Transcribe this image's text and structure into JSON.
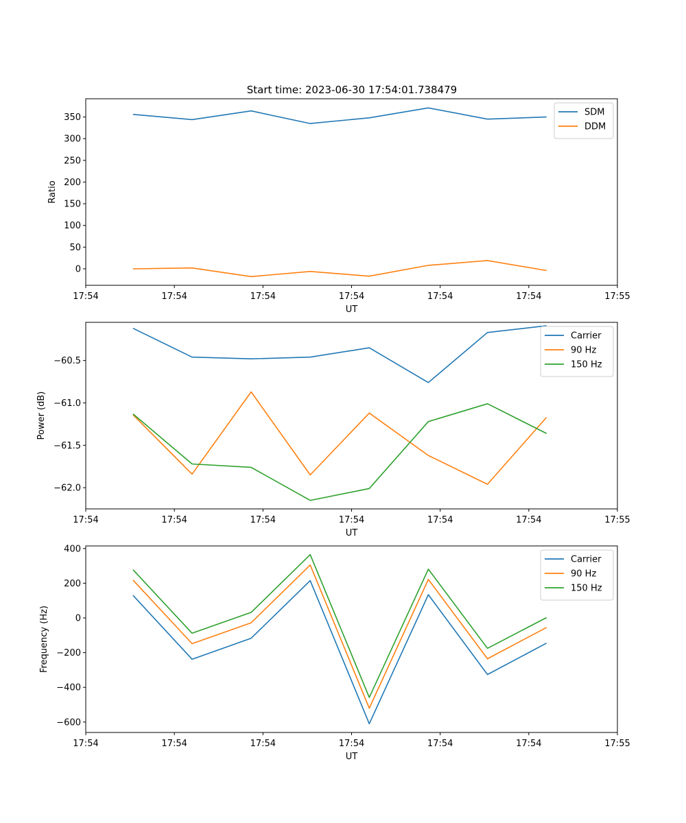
{
  "figure": {
    "title": "Start time: 2023-06-30 17:54:01.738479"
  },
  "chart_data": [
    {
      "type": "line",
      "ylabel": "Ratio",
      "xlabel": "UT",
      "x": [
        0.5,
        1.0,
        1.5,
        2.0,
        2.5,
        3.0,
        3.5,
        4.0
      ],
      "xlim": [
        0.1,
        4.6
      ],
      "ylim": [
        -38,
        392
      ],
      "xticks": [
        0.1,
        0.85,
        1.6,
        2.35,
        3.1,
        3.85,
        4.6
      ],
      "xtick_labels": [
        "17:54",
        "17:54",
        "17:54",
        "17:54",
        "17:54",
        "17:54",
        "17:55"
      ],
      "yticks": [
        0,
        50,
        100,
        150,
        200,
        250,
        300,
        350
      ],
      "yticks_labels": [
        "0",
        "50",
        "100",
        "150",
        "200",
        "250",
        "300",
        "350"
      ],
      "legend_position": "top-right",
      "series": [
        {
          "name": "SDM",
          "color": "#1f77b4",
          "values": [
            356,
            344,
            364,
            335,
            348,
            371,
            345,
            350
          ]
        },
        {
          "name": "DDM",
          "color": "#ff7f0e",
          "values": [
            0,
            2,
            -18,
            -6,
            -17,
            8,
            19,
            -4
          ]
        }
      ]
    },
    {
      "type": "line",
      "ylabel": "Power (dB)",
      "xlabel": "UT",
      "x": [
        0.5,
        1.0,
        1.5,
        2.0,
        2.5,
        3.0,
        3.5,
        4.0
      ],
      "xlim": [
        0.1,
        4.6
      ],
      "ylim": [
        -62.25,
        -60.05
      ],
      "xticks": [
        0.1,
        0.85,
        1.6,
        2.35,
        3.1,
        3.85,
        4.6
      ],
      "xtick_labels": [
        "17:54",
        "17:54",
        "17:54",
        "17:54",
        "17:54",
        "17:54",
        "17:55"
      ],
      "yticks": [
        -62.0,
        -61.5,
        -61.0,
        -60.5
      ],
      "yticks_labels": [
        "−62.0",
        "−61.5",
        "−61.0",
        "−60.5"
      ],
      "legend_position": "top-right",
      "series": [
        {
          "name": "Carrier",
          "color": "#1f77b4",
          "values": [
            -60.12,
            -60.46,
            -60.48,
            -60.46,
            -60.35,
            -60.76,
            -60.17,
            -60.09
          ]
        },
        {
          "name": "90 Hz",
          "color": "#ff7f0e",
          "values": [
            -61.14,
            -61.84,
            -60.87,
            -61.85,
            -61.12,
            -61.62,
            -61.96,
            -61.17
          ]
        },
        {
          "name": "150 Hz",
          "color": "#2ca02c",
          "values": [
            -61.13,
            -61.72,
            -61.76,
            -62.15,
            -62.01,
            -61.22,
            -61.01,
            -61.36
          ]
        }
      ]
    },
    {
      "type": "line",
      "ylabel": "Frequency (Hz)",
      "xlabel": "UT",
      "x": [
        0.5,
        1.0,
        1.5,
        2.0,
        2.5,
        3.0,
        3.5,
        4.0
      ],
      "xlim": [
        0.1,
        4.6
      ],
      "ylim": [
        -660,
        415
      ],
      "xticks": [
        0.1,
        0.85,
        1.6,
        2.35,
        3.1,
        3.85,
        4.6
      ],
      "xtick_labels": [
        "17:54",
        "17:54",
        "17:54",
        "17:54",
        "17:54",
        "17:54",
        "17:55"
      ],
      "yticks": [
        -600,
        -400,
        -200,
        0,
        200,
        400
      ],
      "yticks_labels": [
        "−600",
        "−400",
        "−200",
        "0",
        "200",
        "400"
      ],
      "legend_position": "top-right",
      "series": [
        {
          "name": "Carrier",
          "color": "#1f77b4",
          "values": [
            130,
            -238,
            -117,
            215,
            -610,
            134,
            -326,
            -145
          ]
        },
        {
          "name": "90 Hz",
          "color": "#ff7f0e",
          "values": [
            218,
            -148,
            -28,
            305,
            -520,
            222,
            -235,
            -55
          ]
        },
        {
          "name": "150 Hz",
          "color": "#2ca02c",
          "values": [
            278,
            -88,
            32,
            365,
            -458,
            281,
            -175,
            2
          ]
        }
      ]
    }
  ]
}
